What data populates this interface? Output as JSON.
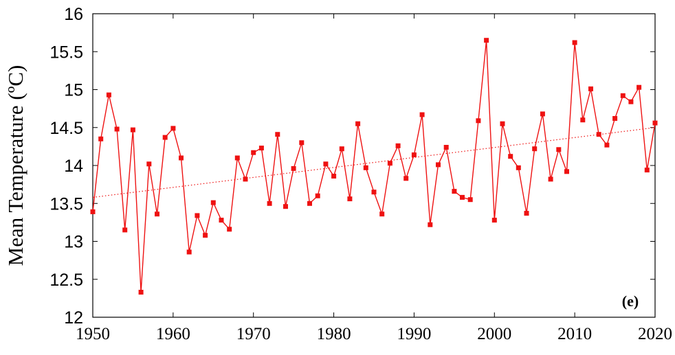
{
  "chart_data": {
    "type": "line",
    "xlabel": "",
    "ylabel": "Mean Temperature (ºC)",
    "panel_label": "(e)",
    "xlim": [
      1950,
      2020
    ],
    "ylim": [
      12,
      16
    ],
    "xticks": [
      1950,
      1960,
      1970,
      1980,
      1990,
      2000,
      2010,
      2020
    ],
    "yticks": [
      12,
      12.5,
      13,
      13.5,
      14,
      14.5,
      15,
      15.5,
      16
    ],
    "ytick_labels": [
      "12",
      "12.5",
      "13",
      "13.5",
      "14",
      "14.5",
      "15",
      "15.5",
      "16"
    ],
    "grid": false,
    "legend": "none",
    "colors": {
      "series": "#ee1111",
      "axis": "#000000"
    },
    "series": [
      {
        "marker": "square",
        "x": [
          1950,
          1951,
          1952,
          1953,
          1954,
          1955,
          1956,
          1957,
          1958,
          1959,
          1960,
          1961,
          1962,
          1963,
          1964,
          1965,
          1966,
          1967,
          1968,
          1969,
          1970,
          1971,
          1972,
          1973,
          1974,
          1975,
          1976,
          1977,
          1978,
          1979,
          1980,
          1981,
          1982,
          1983,
          1984,
          1985,
          1986,
          1987,
          1988,
          1989,
          1990,
          1991,
          1992,
          1993,
          1994,
          1995,
          1996,
          1997,
          1998,
          1999,
          2000,
          2001,
          2002,
          2003,
          2004,
          2005,
          2006,
          2007,
          2008,
          2009,
          2010,
          2011,
          2012,
          2013,
          2014,
          2015,
          2016,
          2017,
          2018,
          2019,
          2020
        ],
        "y": [
          13.39,
          14.35,
          14.93,
          14.48,
          13.15,
          14.47,
          12.33,
          14.02,
          13.36,
          14.37,
          14.49,
          14.1,
          12.86,
          13.34,
          13.08,
          13.51,
          13.28,
          13.16,
          14.1,
          13.82,
          14.17,
          14.23,
          13.5,
          14.41,
          13.46,
          13.96,
          14.3,
          13.5,
          13.6,
          14.02,
          13.86,
          14.22,
          13.56,
          14.55,
          13.97,
          13.65,
          13.36,
          14.03,
          14.26,
          13.83,
          14.14,
          14.67,
          13.22,
          14.01,
          14.24,
          13.66,
          13.58,
          13.55,
          14.59,
          15.65,
          13.28,
          14.55,
          14.12,
          13.97,
          13.37,
          14.22,
          14.68,
          13.82,
          14.21,
          13.92,
          15.62,
          14.6,
          15.01,
          14.41,
          14.27,
          14.62,
          14.92,
          14.84,
          15.03,
          13.94,
          14.56
        ]
      }
    ],
    "trendline": {
      "style": "dotted",
      "x": [
        1950,
        2020
      ],
      "y": [
        13.58,
        14.5
      ]
    }
  }
}
